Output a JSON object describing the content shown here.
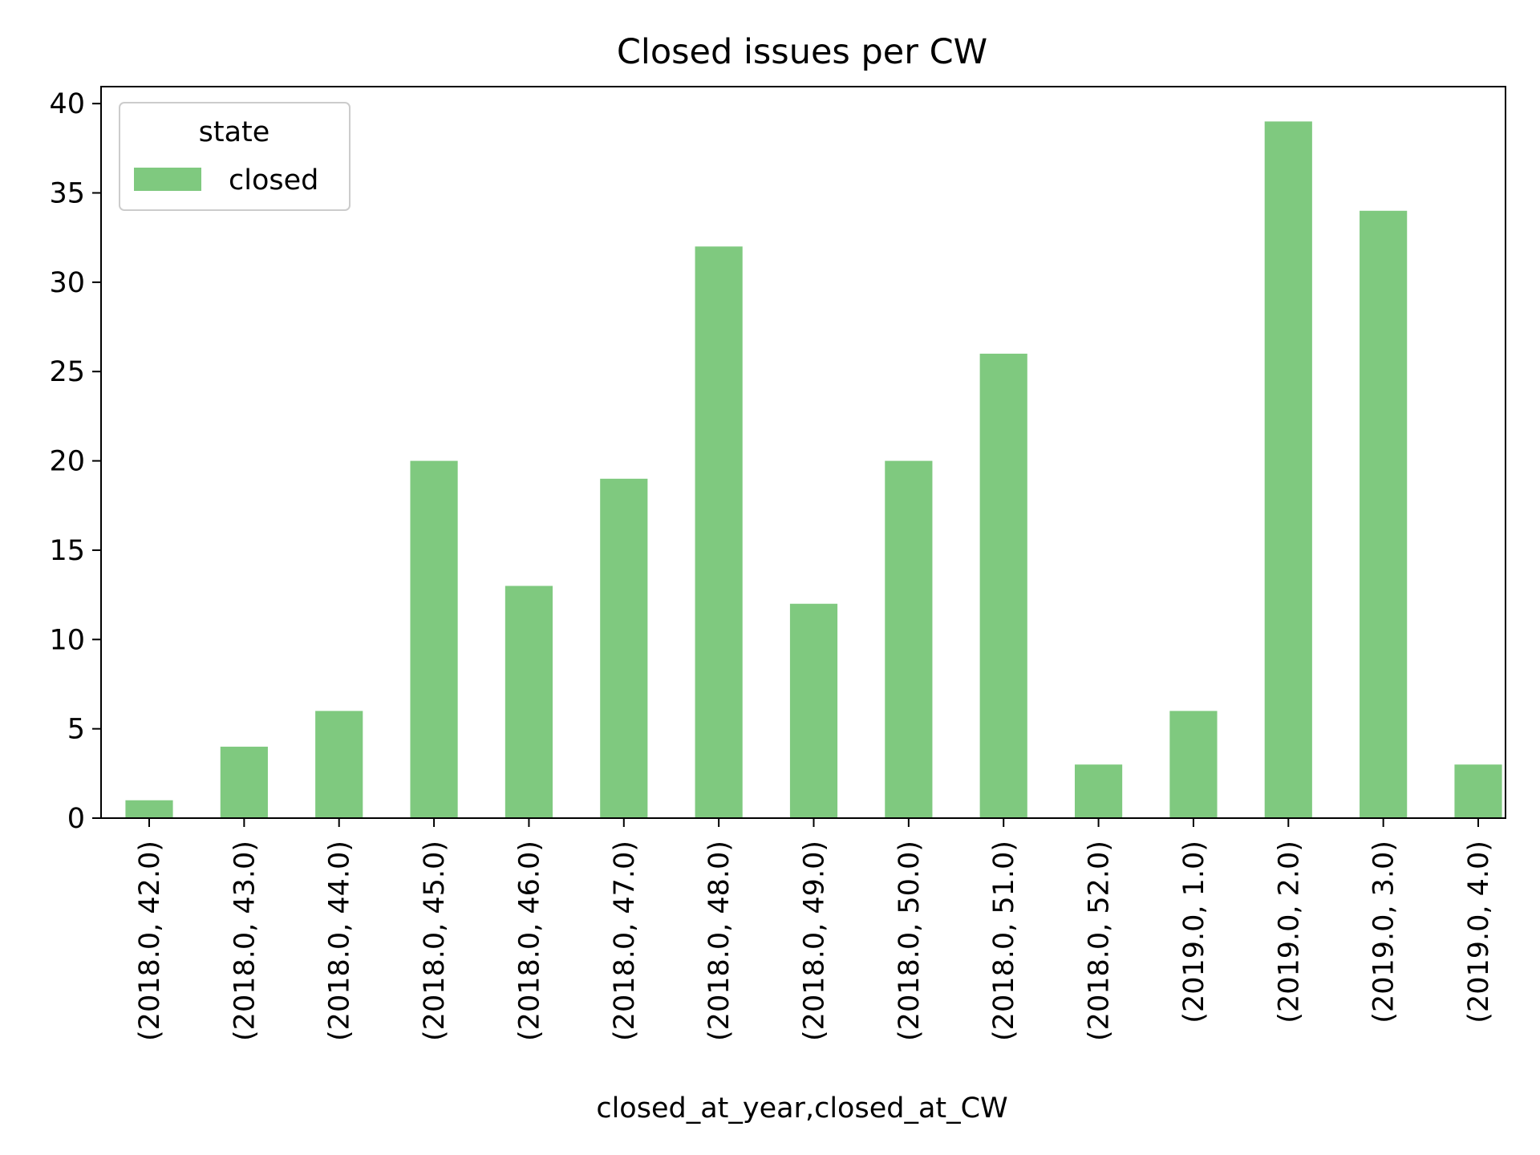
{
  "chart_data": {
    "type": "bar",
    "title": "Closed issues per CW",
    "xlabel": "closed_at_year,closed_at_CW",
    "ylabel": "",
    "categories": [
      "(2018.0, 42.0)",
      "(2018.0, 43.0)",
      "(2018.0, 44.0)",
      "(2018.0, 45.0)",
      "(2018.0, 46.0)",
      "(2018.0, 47.0)",
      "(2018.0, 48.0)",
      "(2018.0, 49.0)",
      "(2018.0, 50.0)",
      "(2018.0, 51.0)",
      "(2018.0, 52.0)",
      "(2019.0, 1.0)",
      "(2019.0, 2.0)",
      "(2019.0, 3.0)",
      "(2019.0, 4.0)"
    ],
    "series": [
      {
        "name": "closed",
        "color": "#7fc97f",
        "values": [
          1,
          4,
          6,
          20,
          13,
          19,
          32,
          12,
          20,
          26,
          3,
          6,
          39,
          34,
          3
        ]
      }
    ],
    "ylim": [
      0,
      40.95
    ],
    "yticks": [
      0,
      5,
      10,
      15,
      20,
      25,
      30,
      35,
      40
    ],
    "legend": {
      "title": "state",
      "position": "top-left"
    },
    "grid": false
  }
}
